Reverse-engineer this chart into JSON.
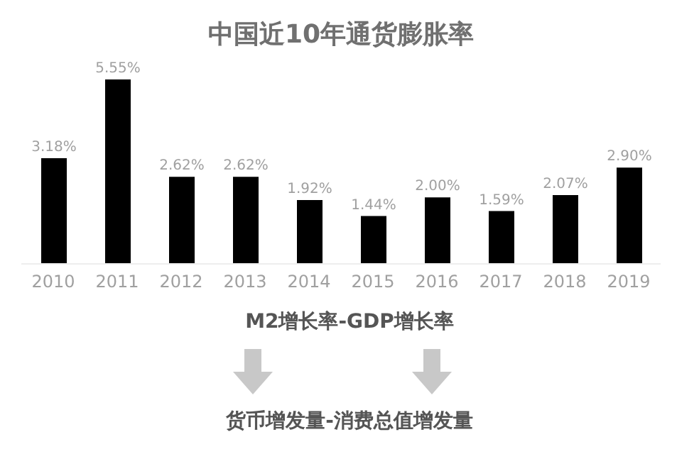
{
  "chart_data": {
    "type": "bar",
    "title": "中国近10年通货膨胀率",
    "categories": [
      "2010",
      "2011",
      "2012",
      "2013",
      "2014",
      "2015",
      "2016",
      "2017",
      "2018",
      "2019"
    ],
    "values": [
      3.18,
      5.55,
      2.62,
      2.62,
      1.92,
      1.44,
      2.0,
      1.59,
      2.07,
      2.9
    ],
    "value_labels": [
      "3.18%",
      "5.55%",
      "2.62%",
      "2.62%",
      "1.92%",
      "1.44%",
      "2.00%",
      "1.59%",
      "2.07%",
      "2.90%"
    ],
    "color": "#000000",
    "annotations": [
      "M2增长率-GDP增长率",
      "货币增发量-消费总值增发量"
    ]
  }
}
